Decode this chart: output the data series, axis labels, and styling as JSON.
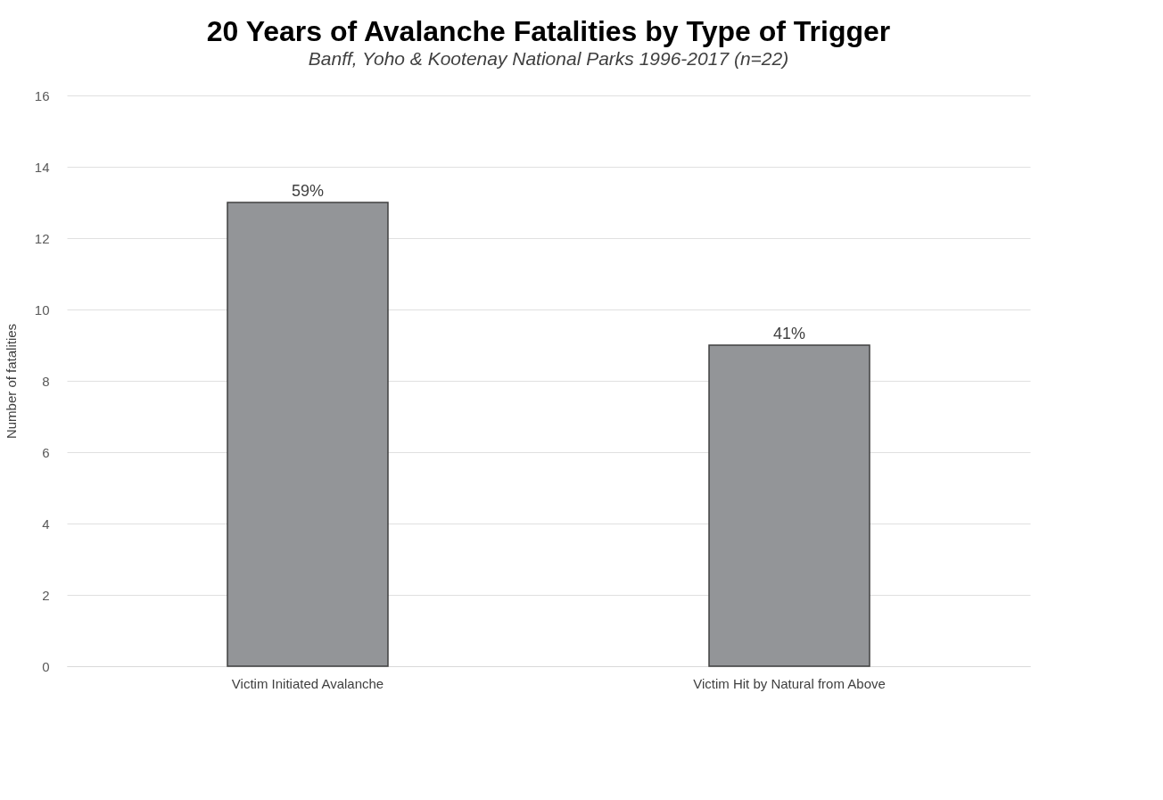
{
  "chart_data": {
    "type": "bar",
    "title": "20 Years of Avalanche Fatalities by Type of Trigger",
    "subtitle": "Banff, Yoho & Kootenay National Parks 1996-2017 (n=22)",
    "ylabel": "Number of fatalities",
    "categories": [
      "Victim Initiated Avalanche",
      "Victim Hit by Natural from Above"
    ],
    "series": [
      {
        "color": "#939598",
        "values": [
          13,
          9
        ]
      }
    ],
    "value_labels": [
      "59%",
      "41%"
    ],
    "ylim": [
      0,
      16
    ],
    "yticks": [
      0,
      2,
      4,
      6,
      8,
      10,
      12,
      14,
      16
    ],
    "grid": "y"
  }
}
